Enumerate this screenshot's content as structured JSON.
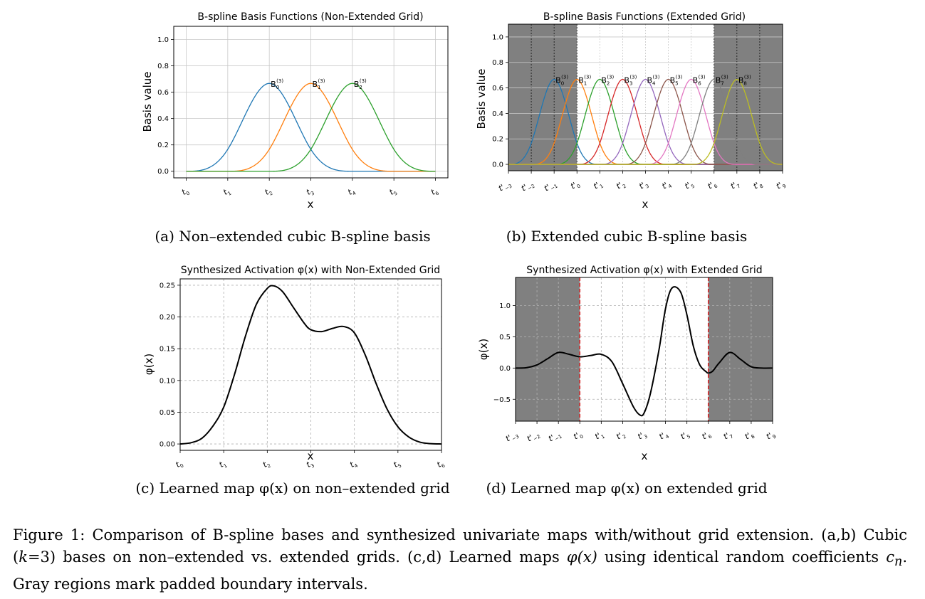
{
  "panels": {
    "a": {
      "chart_data": {
        "type": "line",
        "title": "B-spline Basis Functions (Non-Extended Grid)",
        "xlabel": "x",
        "ylabel": "Basis value",
        "xlim": [
          0,
          6
        ],
        "ylim": [
          -0.05,
          1.1
        ],
        "yticks": [
          "0.0",
          "0.2",
          "0.4",
          "0.6",
          "0.8",
          "1.0"
        ],
        "ytick_values": [
          0,
          0.2,
          0.4,
          0.6,
          0.8,
          1.0
        ],
        "xtick_values": [
          0,
          1,
          2,
          3,
          4,
          5,
          6
        ],
        "xtick_base": [
          "t",
          "t",
          "t",
          "t",
          "t",
          "t",
          "t"
        ],
        "xtick_sub": [
          "0",
          "1",
          "2",
          "3",
          "4",
          "5",
          "6"
        ],
        "grid": true,
        "series": [
          {
            "name": "B",
            "sup": "(3)",
            "sub": "0",
            "color": "#1f77b4",
            "knots": [
              0,
              1,
              2,
              3,
              4
            ]
          },
          {
            "name": "B",
            "sup": "(3)",
            "sub": "1",
            "color": "#ff7f0e",
            "knots": [
              1,
              2,
              3,
              4,
              5
            ]
          },
          {
            "name": "B",
            "sup": "(3)",
            "sub": "2",
            "color": "#2ca02c",
            "knots": [
              2,
              3,
              4,
              5,
              6
            ]
          }
        ]
      },
      "subcaption": "(a) Non–extended cubic B-spline basis"
    },
    "b": {
      "chart_data": {
        "type": "line",
        "title": "B-spline Basis Functions (Extended Grid)",
        "xlabel": "x",
        "ylabel": "Basis value",
        "xlim": [
          -3,
          9
        ],
        "ylim": [
          -0.05,
          1.1
        ],
        "yticks": [
          "0.0",
          "0.2",
          "0.4",
          "0.6",
          "0.8",
          "1.0"
        ],
        "ytick_values": [
          0,
          0.2,
          0.4,
          0.6,
          0.8,
          1.0
        ],
        "xtick_values": [
          -3,
          -2,
          -1,
          0,
          1,
          2,
          3,
          4,
          5,
          6,
          7,
          8,
          9
        ],
        "xtick_base": [
          "t'",
          "t'",
          "t'",
          "t'",
          "t'",
          "t'",
          "t'",
          "t'",
          "t'",
          "t'",
          "t'",
          "t'",
          "t'"
        ],
        "xtick_sub": [
          "−3",
          "−2",
          "−1",
          "0",
          "1",
          "2",
          "3",
          "4",
          "5",
          "6",
          "7",
          "8",
          "9"
        ],
        "shaded_regions": [
          [
            -3,
            0
          ],
          [
            6,
            9
          ]
        ],
        "grid": true,
        "series": [
          {
            "name": "B",
            "sup": "(3)",
            "sub": "0",
            "color": "#1f77b4",
            "knots": [
              -3,
              -2,
              -1,
              0,
              1
            ]
          },
          {
            "name": "B",
            "sup": "(3)",
            "sub": "1",
            "color": "#ff7f0e",
            "knots": [
              -2,
              -1,
              0,
              1,
              2
            ]
          },
          {
            "name": "B",
            "sup": "(3)",
            "sub": "2",
            "color": "#2ca02c",
            "knots": [
              -1,
              0,
              1,
              2,
              3
            ]
          },
          {
            "name": "B",
            "sup": "(3)",
            "sub": "3",
            "color": "#d62728",
            "knots": [
              0,
              1,
              2,
              3,
              4
            ]
          },
          {
            "name": "B",
            "sup": "(3)",
            "sub": "4",
            "color": "#9467bd",
            "knots": [
              1,
              2,
              3,
              4,
              5
            ]
          },
          {
            "name": "B",
            "sup": "(3)",
            "sub": "5",
            "color": "#8c564b",
            "knots": [
              2,
              3,
              4,
              5,
              6
            ]
          },
          {
            "name": "B",
            "sup": "(3)",
            "sub": "6",
            "color": "#e377c2",
            "knots": [
              3,
              4,
              5,
              6,
              7
            ]
          },
          {
            "name": "B",
            "sup": "(3)",
            "sub": "7",
            "color": "#7f7f7f",
            "knots": [
              4,
              5,
              6,
              7,
              8
            ]
          },
          {
            "name": "B",
            "sup": "(3)",
            "sub": "8",
            "color": "#bcbd22",
            "knots": [
              5,
              6,
              7,
              8,
              9
            ]
          }
        ]
      },
      "subcaption": "(b) Extended cubic B-spline basis"
    },
    "c": {
      "chart_data": {
        "type": "line",
        "title": "Synthesized Activation φ(x) with Non-Extended Grid",
        "xlabel": "x",
        "ylabel": "φ(x)",
        "xlim": [
          0,
          6
        ],
        "ylim": [
          -0.01,
          0.26
        ],
        "yticks": [
          "0.00",
          "0.05",
          "0.10",
          "0.15",
          "0.20",
          "0.25"
        ],
        "ytick_values": [
          0,
          0.05,
          0.1,
          0.15,
          0.2,
          0.25
        ],
        "xtick_values": [
          0,
          1,
          2,
          3,
          4,
          5,
          6
        ],
        "xtick_base": [
          "t",
          "t",
          "t",
          "t",
          "t",
          "t",
          "t"
        ],
        "xtick_sub": [
          "0",
          "1",
          "2",
          "3",
          "4",
          "5",
          "6"
        ],
        "grid": true,
        "x": [
          0,
          0.25,
          0.5,
          0.75,
          1.0,
          1.25,
          1.5,
          1.75,
          2.0,
          2.15,
          2.35,
          2.6,
          2.85,
          3.0,
          3.25,
          3.5,
          3.75,
          4.0,
          4.25,
          4.5,
          4.75,
          5.0,
          5.25,
          5.5,
          5.75,
          6.0
        ],
        "y": [
          0.0,
          0.002,
          0.009,
          0.028,
          0.058,
          0.11,
          0.17,
          0.22,
          0.245,
          0.249,
          0.24,
          0.215,
          0.19,
          0.18,
          0.177,
          0.182,
          0.185,
          0.175,
          0.14,
          0.095,
          0.055,
          0.027,
          0.011,
          0.003,
          0.0005,
          0.0
        ]
      },
      "subcaption": "(c) Learned map φ(x) on non–extended grid"
    },
    "d": {
      "chart_data": {
        "type": "line",
        "title": "Synthesized Activation φ(x) with Extended Grid",
        "xlabel": "x",
        "ylabel": "φ(x)",
        "xlim": [
          -3,
          9
        ],
        "ylim": [
          -0.85,
          1.45
        ],
        "yticks": [
          "−0.5",
          "0.0",
          "0.5",
          "1.0"
        ],
        "ytick_values": [
          -0.5,
          0,
          0.5,
          1.0
        ],
        "xtick_values": [
          -3,
          -2,
          -1,
          0,
          1,
          2,
          3,
          4,
          5,
          6,
          7,
          8,
          9
        ],
        "xtick_base": [
          "t'",
          "t'",
          "t'",
          "t'",
          "t'",
          "t'",
          "t'",
          "t'",
          "t'",
          "t'",
          "t'",
          "t'",
          "t'"
        ],
        "xtick_sub": [
          "−3",
          "−2",
          "−1",
          "0",
          "1",
          "2",
          "3",
          "4",
          "5",
          "6",
          "7",
          "8",
          "9"
        ],
        "shaded_regions": [
          [
            -3,
            0
          ],
          [
            6,
            9
          ]
        ],
        "vlines": [
          0,
          6
        ],
        "grid": true,
        "x": [
          -3,
          -2.5,
          -2,
          -1.5,
          -1.0,
          -0.5,
          0,
          0.5,
          1.0,
          1.5,
          2.0,
          2.5,
          2.8,
          3.0,
          3.3,
          3.7,
          4.0,
          4.3,
          4.7,
          5.0,
          5.3,
          5.6,
          5.9,
          6.0,
          6.2,
          6.5,
          7.0,
          7.5,
          8.0,
          8.5,
          9.0
        ],
        "y": [
          0.0,
          0.005,
          0.05,
          0.15,
          0.25,
          0.22,
          0.18,
          0.2,
          0.22,
          0.1,
          -0.25,
          -0.62,
          -0.75,
          -0.72,
          -0.4,
          0.3,
          0.95,
          1.28,
          1.22,
          0.85,
          0.35,
          0.05,
          -0.06,
          -0.08,
          -0.05,
          0.08,
          0.25,
          0.14,
          0.02,
          0.0,
          0.0
        ]
      },
      "subcaption": "(d) Learned map φ(x) on extended grid"
    }
  },
  "caption": {
    "label": "Figure 1:",
    "part1": "Comparison of B-spline bases and synthesized univariate maps with/without grid extension. (a,b) Cubic (",
    "k_expr": "k",
    "part2": "=3) bases on non–extended vs. extended grids. (c,d) Learned maps ",
    "phi_expr": "φ(x)",
    "part3": " using identical random coefficients ",
    "c_expr": "c",
    "c_sub": "n",
    "part4": ". Gray regions mark padded boundary intervals."
  }
}
